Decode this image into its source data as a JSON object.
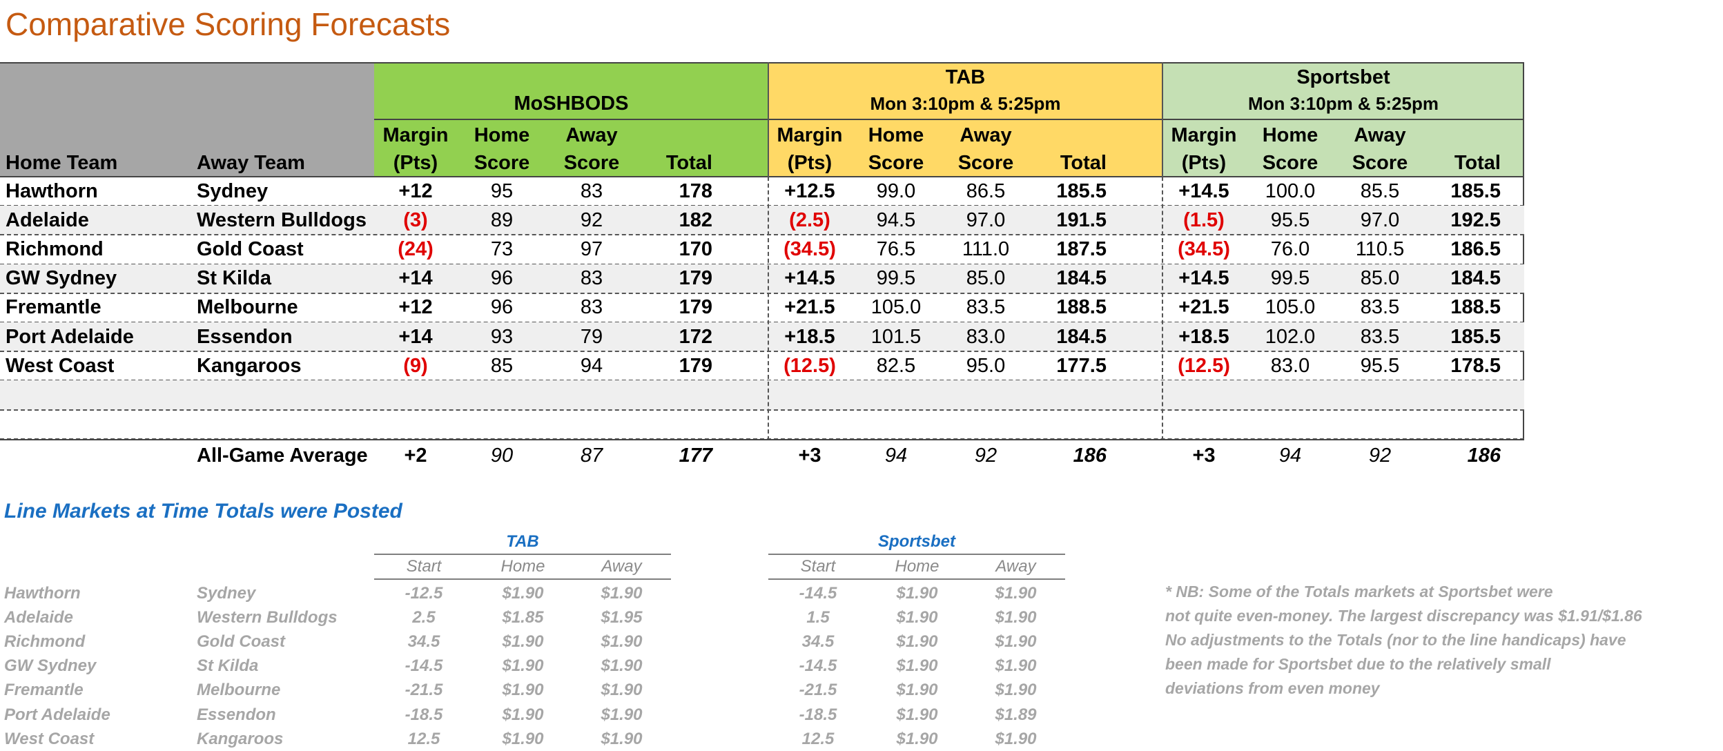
{
  "title": "Comparative Scoring Forecasts",
  "colors": {
    "title": "#c55a11",
    "moshbods_header": "#92d050",
    "tab_header": "#ffd966",
    "sportsbet_header": "#c5e0b4",
    "team_header": "#a6a6a6",
    "negative": "#e00000",
    "line_markets": "#1a6fc2"
  },
  "groups": {
    "moshbods": {
      "name": "MoSHBODS",
      "time": ""
    },
    "tab": {
      "name": "TAB",
      "time": "Mon 3:10pm & 5:25pm"
    },
    "sportsbet": {
      "name": "Sportsbet",
      "time": "Mon 3:10pm & 5:25pm"
    }
  },
  "columns": {
    "home_team": "Home Team",
    "away_team": "Away Team",
    "margin_1": "Margin",
    "margin_2": "(Pts)",
    "home_1": "Home",
    "home_2": "Score",
    "away_1": "Away",
    "away_2": "Score",
    "total": "Total"
  },
  "rows": [
    {
      "home": "Hawthorn",
      "away": "Sydney",
      "m": [
        "+12",
        "95",
        "83",
        "178"
      ],
      "t": [
        "+12.5",
        "99.0",
        "86.5",
        "185.5"
      ],
      "s": [
        "+14.5",
        "100.0",
        "85.5",
        "185.5"
      ]
    },
    {
      "home": "Adelaide",
      "away": "Western Bulldogs",
      "m": [
        "(3)",
        "89",
        "92",
        "182"
      ],
      "t": [
        "(2.5)",
        "94.5",
        "97.0",
        "191.5"
      ],
      "s": [
        "(1.5)",
        "95.5",
        "97.0",
        "192.5"
      ]
    },
    {
      "home": "Richmond",
      "away": "Gold Coast",
      "m": [
        "(24)",
        "73",
        "97",
        "170"
      ],
      "t": [
        "(34.5)",
        "76.5",
        "111.0",
        "187.5"
      ],
      "s": [
        "(34.5)",
        "76.0",
        "110.5",
        "186.5"
      ]
    },
    {
      "home": "GW Sydney",
      "away": "St Kilda",
      "m": [
        "+14",
        "96",
        "83",
        "179"
      ],
      "t": [
        "+14.5",
        "99.5",
        "85.0",
        "184.5"
      ],
      "s": [
        "+14.5",
        "99.5",
        "85.0",
        "184.5"
      ]
    },
    {
      "home": "Fremantle",
      "away": "Melbourne",
      "m": [
        "+12",
        "96",
        "83",
        "179"
      ],
      "t": [
        "+21.5",
        "105.0",
        "83.5",
        "188.5"
      ],
      "s": [
        "+21.5",
        "105.0",
        "83.5",
        "188.5"
      ]
    },
    {
      "home": "Port Adelaide",
      "away": "Essendon",
      "m": [
        "+14",
        "93",
        "79",
        "172"
      ],
      "t": [
        "+18.5",
        "101.5",
        "83.0",
        "184.5"
      ],
      "s": [
        "+18.5",
        "102.0",
        "83.5",
        "185.5"
      ]
    },
    {
      "home": "West Coast",
      "away": "Kangaroos",
      "m": [
        "(9)",
        "85",
        "94",
        "179"
      ],
      "t": [
        "(12.5)",
        "82.5",
        "95.0",
        "177.5"
      ],
      "s": [
        "(12.5)",
        "83.0",
        "95.5",
        "178.5"
      ]
    }
  ],
  "average": {
    "label": "All-Game Average",
    "m": [
      "+2",
      "90",
      "87",
      "177"
    ],
    "t": [
      "+3",
      "94",
      "92",
      "186"
    ],
    "s": [
      "+3",
      "94",
      "92",
      "186"
    ]
  },
  "line_markets": {
    "title": "Line Markets at Time Totals were Posted",
    "tab_label": "TAB",
    "sportsbet_label": "Sportsbet",
    "col_start": "Start",
    "col_home": "Home",
    "col_away": "Away",
    "rows": [
      {
        "home": "Hawthorn",
        "away": "Sydney",
        "tab": [
          "-12.5",
          "$1.90",
          "$1.90"
        ],
        "sb": [
          "-14.5",
          "$1.90",
          "$1.90"
        ]
      },
      {
        "home": "Adelaide",
        "away": "Western Bulldogs",
        "tab": [
          "2.5",
          "$1.85",
          "$1.95"
        ],
        "sb": [
          "1.5",
          "$1.90",
          "$1.90"
        ]
      },
      {
        "home": "Richmond",
        "away": "Gold Coast",
        "tab": [
          "34.5",
          "$1.90",
          "$1.90"
        ],
        "sb": [
          "34.5",
          "$1.90",
          "$1.90"
        ]
      },
      {
        "home": "GW Sydney",
        "away": "St Kilda",
        "tab": [
          "-14.5",
          "$1.90",
          "$1.90"
        ],
        "sb": [
          "-14.5",
          "$1.90",
          "$1.90"
        ]
      },
      {
        "home": "Fremantle",
        "away": "Melbourne",
        "tab": [
          "-21.5",
          "$1.90",
          "$1.90"
        ],
        "sb": [
          "-21.5",
          "$1.90",
          "$1.90"
        ]
      },
      {
        "home": "Port Adelaide",
        "away": "Essendon",
        "tab": [
          "-18.5",
          "$1.90",
          "$1.90"
        ],
        "sb": [
          "-18.5",
          "$1.90",
          "$1.89"
        ]
      },
      {
        "home": "West Coast",
        "away": "Kangaroos",
        "tab": [
          "12.5",
          "$1.90",
          "$1.90"
        ],
        "sb": [
          "12.5",
          "$1.90",
          "$1.90"
        ]
      }
    ]
  },
  "notes": [
    "* NB: Some of the Totals markets at Sportsbet were",
    "not quite even-money. The largest discrepancy was $1.91/$1.86",
    "No adjustments to the Totals (nor to the line handicaps) have",
    "been made for Sportsbet due to the relatively small",
    "deviations from even money"
  ]
}
